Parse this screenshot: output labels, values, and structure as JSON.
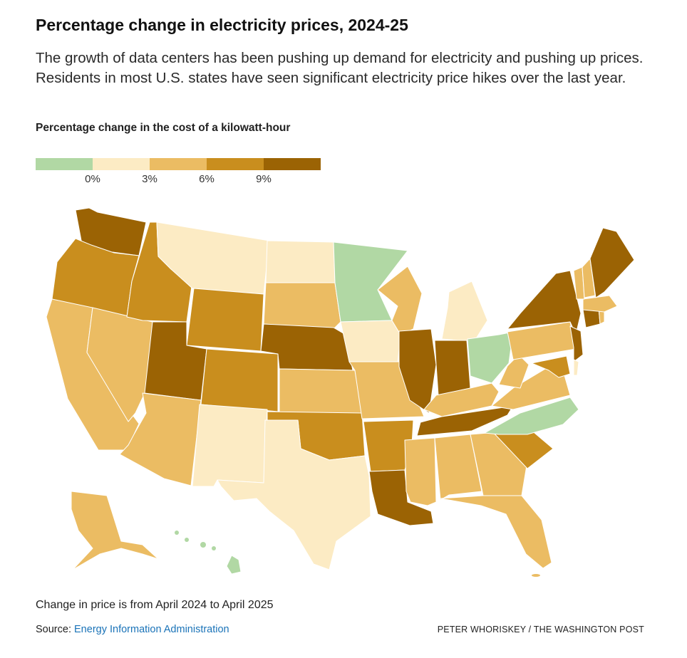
{
  "header": {
    "title": "Percentage change in electricity prices, 2024-25",
    "subtitle": "The growth of data centers has been pushing up demand for electricity and pushing up prices. Residents in most U.S. states have seen significant electricity price hikes over the last year."
  },
  "legend": {
    "title": "Percentage change in the cost of a kilowatt-hour",
    "bins": [
      {
        "label": "below 0%",
        "color": "#b1d8a4"
      },
      {
        "label": "0% to 3%",
        "color": "#fcebc4"
      },
      {
        "label": "3% to 6%",
        "color": "#ebbc63"
      },
      {
        "label": "6% to 9%",
        "color": "#c98e1e"
      },
      {
        "label": "9% and above",
        "color": "#9b6304"
      }
    ],
    "ticks": [
      "0%",
      "3%",
      "6%",
      "9%"
    ]
  },
  "chart_data": {
    "type": "choropleth",
    "title": "Percentage change in electricity prices, 2024-25",
    "legend_title": "Percentage change in the cost of a kilowatt-hour",
    "breaks": [
      0,
      3,
      6,
      9
    ],
    "states": {
      "WA": 4,
      "OR": 3,
      "CA": 2,
      "NV": 2,
      "ID": 3,
      "MT": 1,
      "WY": 3,
      "UT": 4,
      "AZ": 2,
      "CO": 3,
      "NM": 1,
      "ND": 1,
      "SD": 2,
      "NE": 4,
      "KS": 2,
      "OK": 3,
      "TX": 1,
      "MN": 0,
      "IA": 1,
      "MO": 2,
      "AR": 3,
      "LA": 4,
      "WI": 2,
      "IL": 4,
      "MI": 1,
      "IN": 4,
      "OH": 0,
      "KY": 2,
      "TN": 4,
      "MS": 2,
      "AL": 2,
      "GA": 2,
      "FL": 2,
      "SC": 3,
      "NC": 0,
      "VA": 2,
      "WV": 2,
      "PA": 2,
      "NY": 4,
      "NJ": 4,
      "DE": 1,
      "MD": 3,
      "CT": 4,
      "RI": 2,
      "MA": 2,
      "VT": 2,
      "NH": 2,
      "ME": 4,
      "AK": 2,
      "HI": 0
    }
  },
  "footer": {
    "note": "Change in price is from April 2024 to April 2025",
    "source_label": "Source:",
    "source_link": "Energy Information Administration",
    "credit": "PETER WHORISKEY / THE WASHINGTON POST"
  }
}
